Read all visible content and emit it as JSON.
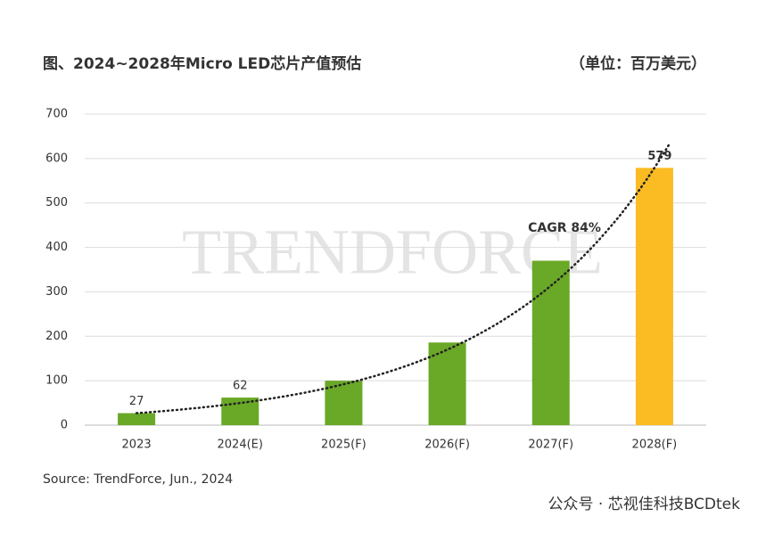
{
  "chart_data": {
    "type": "bar",
    "title": "图、2024~2028年Micro LED芯片产值预估",
    "unit_label": "（单位：百万美元）",
    "categories": [
      "2023",
      "2024(E)",
      "2025(F)",
      "2026(F)",
      "2027(F)",
      "2028(F)"
    ],
    "values": [
      27,
      62,
      100,
      186,
      370,
      579
    ],
    "colors": [
      "#6aa827",
      "#6aa827",
      "#6aa827",
      "#6aa827",
      "#6aa827",
      "#fbbb23"
    ],
    "show_labels": [
      true,
      true,
      false,
      false,
      false,
      true
    ],
    "ylim": [
      0,
      700
    ],
    "yticks": [
      0,
      100,
      200,
      300,
      400,
      500,
      600,
      700
    ],
    "grid": true,
    "trendline": {
      "label": "CAGR 84%",
      "style": "dotted"
    },
    "watermark": "TRENDFORCE",
    "source": "Source: TrendForce, Jun., 2024",
    "footer": "公众号 · 芯视佳科技BCDtek"
  }
}
